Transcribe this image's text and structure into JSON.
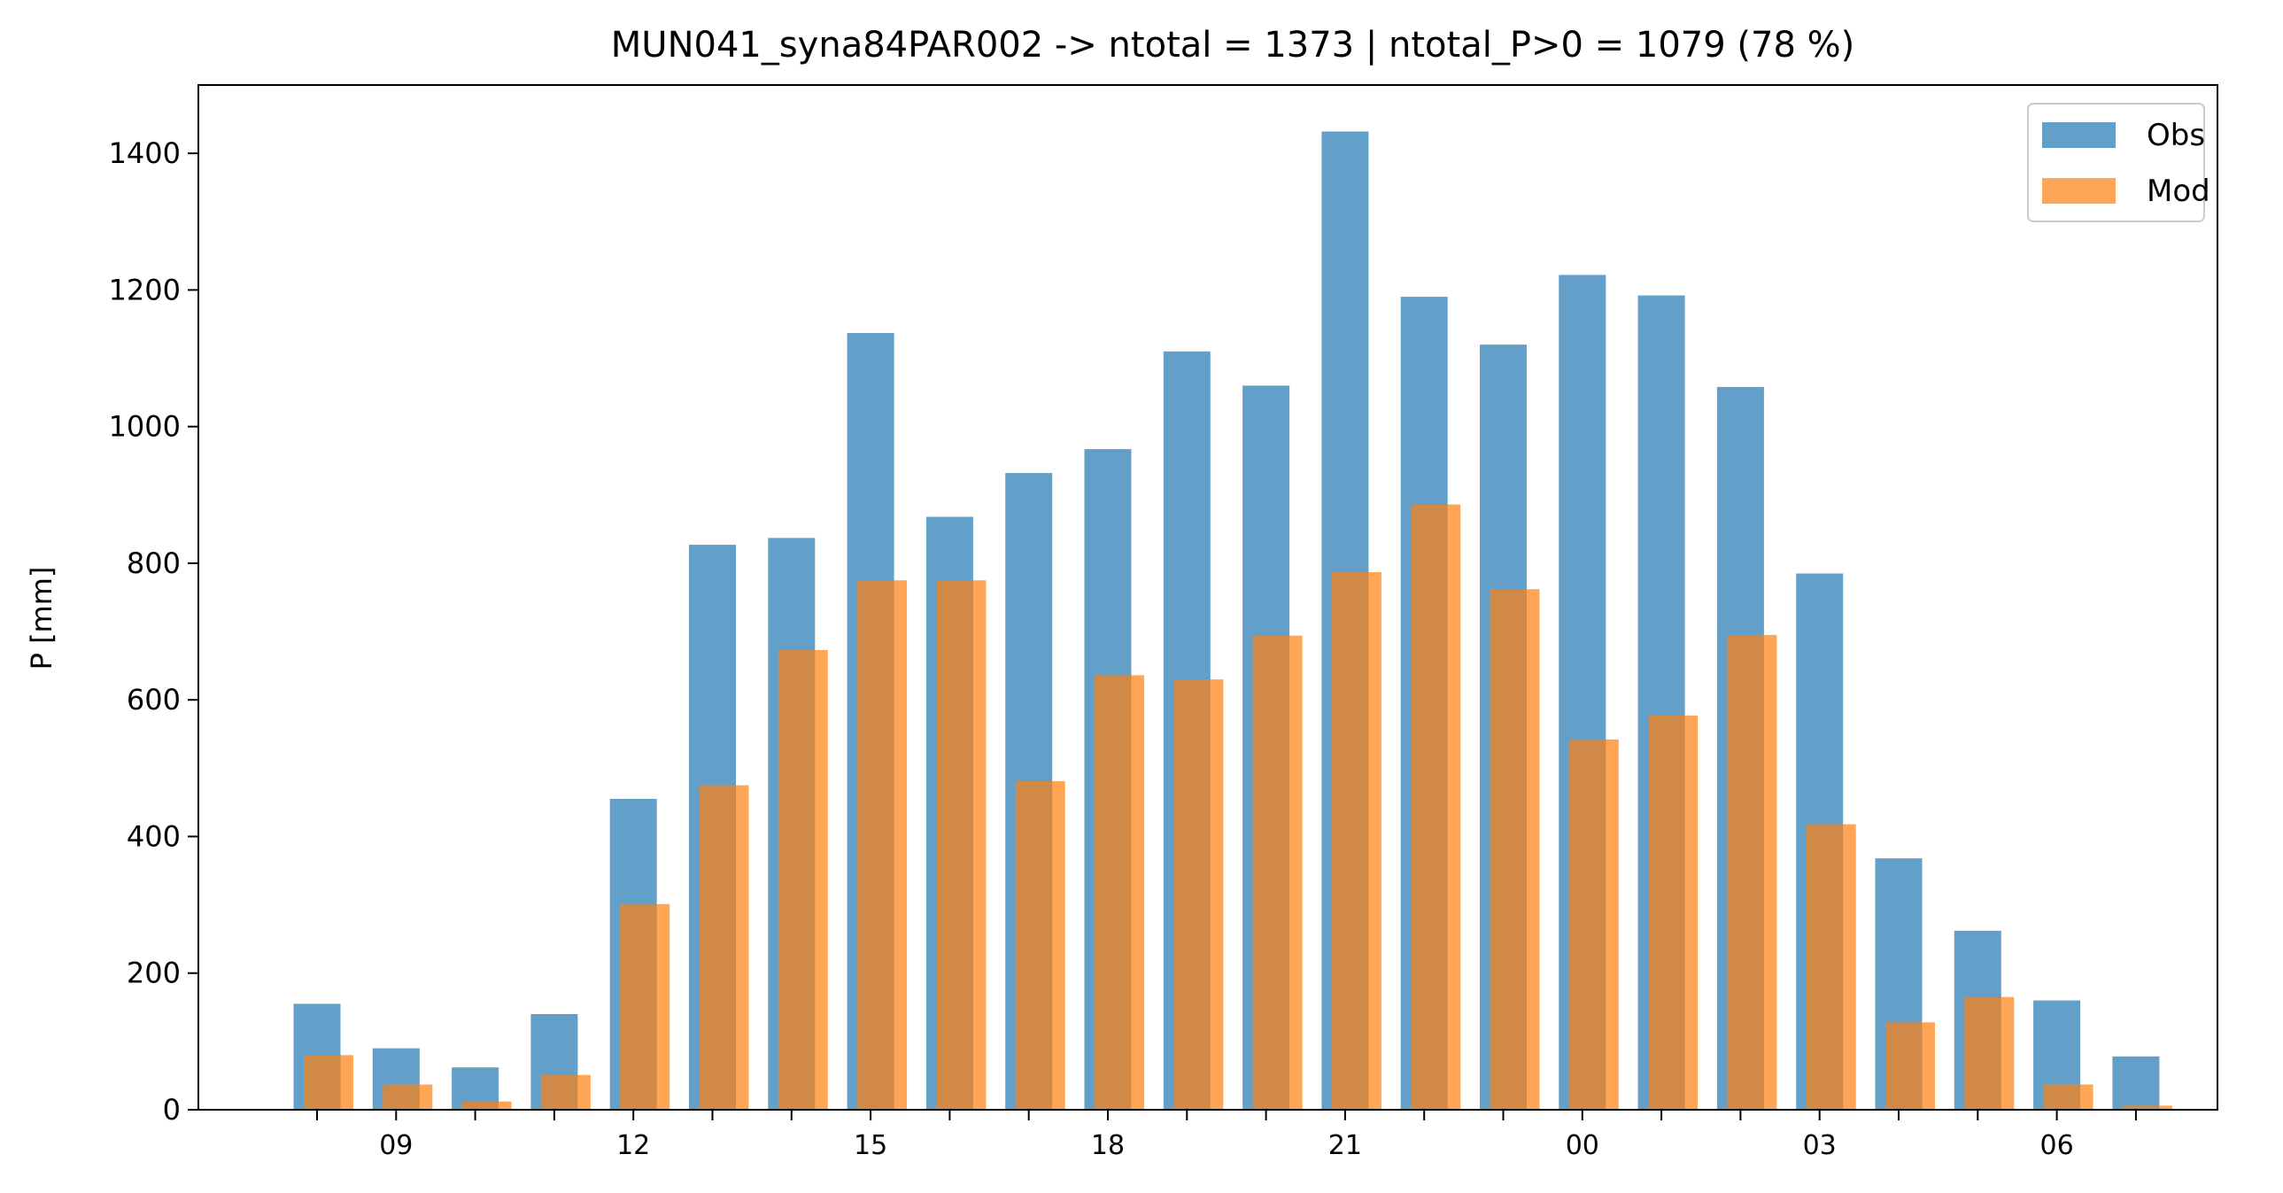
{
  "chart_data": {
    "type": "bar",
    "title": "MUN041_syna84PAR002 -> ntotal = 1373 | ntotal_P>0 = 1079 (78 %)",
    "xlabel": "",
    "ylabel": "P [mm]",
    "ylim": [
      0,
      1500
    ],
    "yticks": [
      0,
      200,
      400,
      600,
      800,
      1000,
      1200,
      1400
    ],
    "hours": [
      8,
      9,
      10,
      11,
      12,
      13,
      14,
      15,
      16,
      17,
      18,
      19,
      20,
      21,
      22,
      23,
      0,
      1,
      2,
      3,
      4,
      5,
      6,
      7
    ],
    "xtick_labels": [
      "09",
      "12",
      "15",
      "18",
      "21",
      "00",
      "03",
      "06"
    ],
    "legend_position": "top-right",
    "grid": false,
    "series": [
      {
        "name": "Obs",
        "color": "#1f77b4",
        "values": [
          155,
          90,
          62,
          140,
          455,
          827,
          837,
          1137,
          868,
          932,
          967,
          1110,
          1060,
          1432,
          1190,
          1120,
          1222,
          1192,
          1058,
          785,
          368,
          262,
          160,
          78
        ]
      },
      {
        "name": "Mod",
        "color": "#ff7f0e",
        "values": [
          80,
          37,
          12,
          51,
          301,
          475,
          673,
          775,
          775,
          481,
          636,
          630,
          694,
          787,
          886,
          762,
          542,
          577,
          695,
          418,
          128,
          165,
          37,
          6
        ]
      }
    ]
  }
}
